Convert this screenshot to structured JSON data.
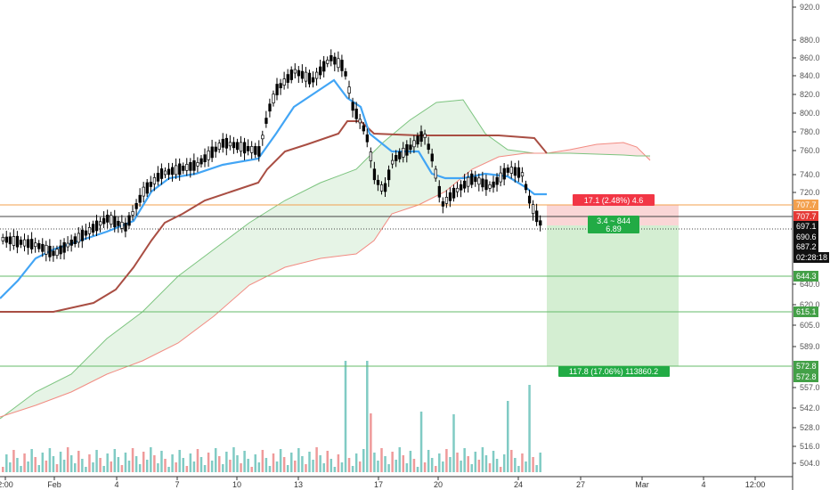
{
  "chart_data": {
    "type": "candlestick",
    "y_axis": {
      "ticks": [
        "920.0",
        "880.0",
        "860.0",
        "840.0",
        "820.0",
        "800.0",
        "780.0",
        "760.0",
        "740.0",
        "720.0",
        "640.0",
        "620.0",
        "605.0",
        "589.0",
        "557.0",
        "542.0",
        "528.0",
        "516.0",
        "504.0"
      ],
      "scale": "log"
    },
    "x_axis": {
      "ticks": [
        "2:00",
        "Feb",
        "4",
        "7",
        "10",
        "13",
        "17",
        "20",
        "24",
        "27",
        "Mar",
        "4",
        "12:00"
      ]
    },
    "price_tags": [
      {
        "text": "707.7",
        "color": "#f3a04d"
      },
      {
        "text": "707.7",
        "color": "#e53935"
      },
      {
        "text": "697.1",
        "color": "#111111"
      },
      {
        "text": "690.6",
        "color": "#111111"
      },
      {
        "text": "687.2",
        "color": "#111111"
      },
      {
        "text": "02:28:18",
        "color": "#111111"
      },
      {
        "text": "644.3",
        "color": "#43a047"
      },
      {
        "text": "615.1",
        "color": "#43a047"
      },
      {
        "text": "572.8",
        "color": "#43a047"
      },
      {
        "text": "572.8",
        "color": "#43a047"
      }
    ],
    "position_tool": {
      "stop_label": "17.1 (2.48%) 4.6",
      "entry_label_line1": "3.4 ~ 844",
      "entry_label_line2": "6.89",
      "target_label": "117.8 (17.06%) 113860.2",
      "entry": 690.6,
      "stop": 707.7,
      "target": 572.8,
      "stop_color": "#f23645",
      "target_color": "#22ab45"
    },
    "horizontal_lines": [
      {
        "value": 707.7,
        "color": "#f3a04d"
      },
      {
        "value": 697.1,
        "color": "#555555"
      },
      {
        "value": 690.6,
        "color": "#555555"
      },
      {
        "value": 644.3,
        "color": "#43a047"
      },
      {
        "value": 615.1,
        "color": "#43a047"
      },
      {
        "value": 572.8,
        "color": "#43a047"
      }
    ],
    "colors": {
      "tenkan": "#42a5f5",
      "kijun": "#a94e43",
      "cloud_bull": "#43a047",
      "cloud_bear": "#ef5350",
      "volume_up": "#80cbc4",
      "volume_down": "#ef9a9a",
      "candle_up": "#ffffff",
      "candle_down": "#000000"
    }
  }
}
